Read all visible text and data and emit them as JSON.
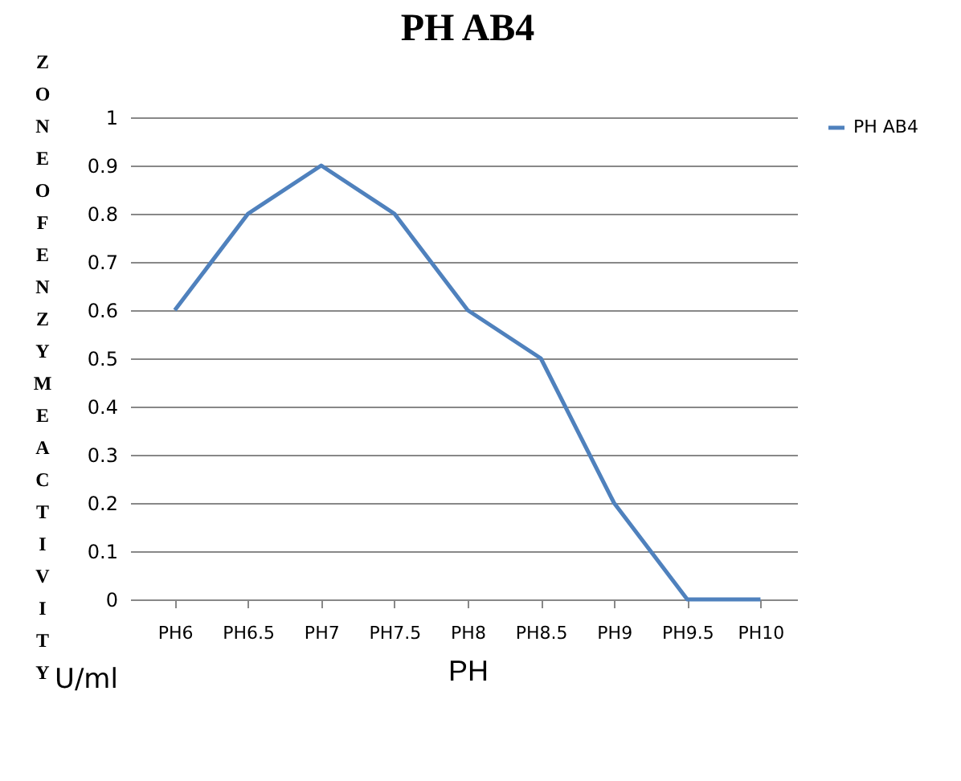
{
  "chart_data": {
    "type": "line",
    "title": "PH AB4",
    "ylabel": "ZONE OF ENZYME ACTIVITY",
    "xlabel": "PH",
    "annotations": [
      "U/ml"
    ],
    "categories": [
      "PH6",
      "PH6.5",
      "PH7",
      "PH7.5",
      "PH8",
      "PH8.5",
      "PH9",
      "PH9.5",
      "PH10"
    ],
    "series": [
      {
        "name": "PH AB4",
        "color": "#4f81bd",
        "values": [
          0.6,
          0.8,
          0.9,
          0.8,
          0.6,
          0.5,
          0.2,
          0,
          0
        ]
      }
    ],
    "ylim": [
      0,
      1
    ],
    "yticks": [
      0,
      0.1,
      0.2,
      0.3,
      0.4,
      0.5,
      0.6,
      0.7,
      0.8,
      0.9,
      1
    ],
    "grid": "y",
    "legend": "right",
    "marker": "none",
    "line_style": "solid"
  }
}
